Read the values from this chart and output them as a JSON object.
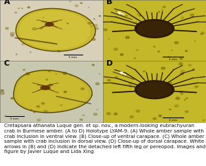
{
  "caption": "Cretapsara athanata Luque gen. et sp. nov., a modern-looking eubrachyuran crab in Burmese amber. (A to D) Holotype LYAM-9. (A) Whole amber sample with crab inclusion in ventral view. (B) Close-up of ventral carapace. (C) Whole amber sample with crab inclusion in dorsal view. (D) Close-up of dorsal carapace. White arrows in (B) and (D) indicate the detached left fifth leg or pereopod. Images and figure by Javier Luque and Lida Xing",
  "panel_labels": [
    "A",
    "B",
    "C",
    "D"
  ],
  "background_color": "#ffffff",
  "caption_fontsize": 5.2,
  "label_fontsize": 8,
  "label_color": "#000000",
  "amber_bg_A": "#d4c84a",
  "amber_bg_B": "#c8ba28",
  "amber_bg_C": "#ccc040",
  "amber_bg_D": "#c4b628",
  "panel_bg_AC": "#c8c8b0",
  "panel_bg_BD": "#b8b090",
  "figwidth": 3.0,
  "figheight": 2.43,
  "dpi": 100
}
